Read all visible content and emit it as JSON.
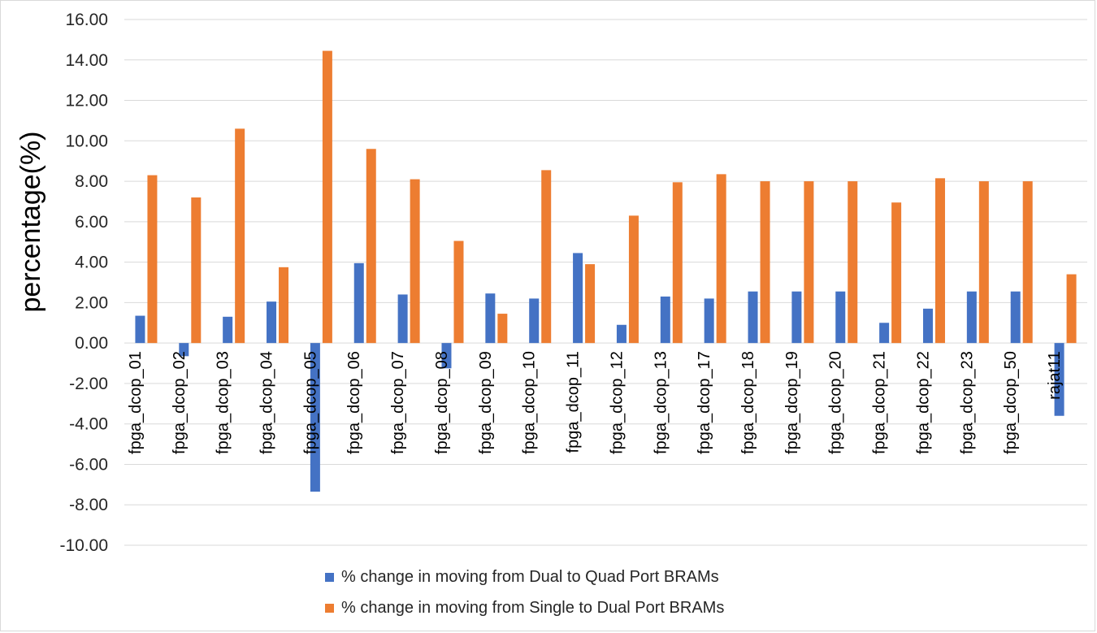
{
  "chart_data": {
    "type": "bar",
    "title": "",
    "xlabel": "",
    "ylabel": "percentage(%)",
    "ylim": [
      -10,
      16
    ],
    "ytick_step": 2,
    "ytick_format": "2 decimals",
    "grid": "horizontal",
    "legend_position": "bottom",
    "categories": [
      "fpga_dcop_01",
      "fpga_dcop_02",
      "fpga_dcop_03",
      "fpga_dcop_04",
      "fpga_dcop_05",
      "fpga_dcop_06",
      "fpga_dcop_07",
      "fpga_dcop_08",
      "fpga_dcop_09",
      "fpga_dcop_10",
      "fpga_dcop_11",
      "fpga_dcop_12",
      "fpga_dcop_13",
      "fpga_dcop_17",
      "fpga_dcop_18",
      "fpga_dcop_19",
      "fpga_dcop_20",
      "fpga_dcop_21",
      "fpga_dcop_22",
      "fpga_dcop_23",
      "fpga_dcop_50",
      "rajat11"
    ],
    "series": [
      {
        "name": "% change in moving from Dual to Quad Port BRAMs",
        "color": "#4472c4",
        "values": [
          1.35,
          -0.65,
          1.3,
          2.05,
          -7.35,
          3.95,
          2.4,
          -1.25,
          2.45,
          2.2,
          4.45,
          0.9,
          2.3,
          2.2,
          2.55,
          2.55,
          2.55,
          1.0,
          1.7,
          2.55,
          2.55,
          -3.6
        ]
      },
      {
        "name": "% change in moving from Single to Dual Port BRAMs",
        "color": "#ed7d31",
        "values": [
          8.3,
          7.2,
          10.6,
          3.75,
          14.45,
          9.6,
          8.1,
          5.05,
          1.45,
          8.55,
          3.9,
          6.3,
          7.95,
          8.35,
          8.0,
          8.0,
          8.0,
          6.95,
          8.15,
          8.0,
          8.0,
          3.4
        ]
      }
    ]
  }
}
